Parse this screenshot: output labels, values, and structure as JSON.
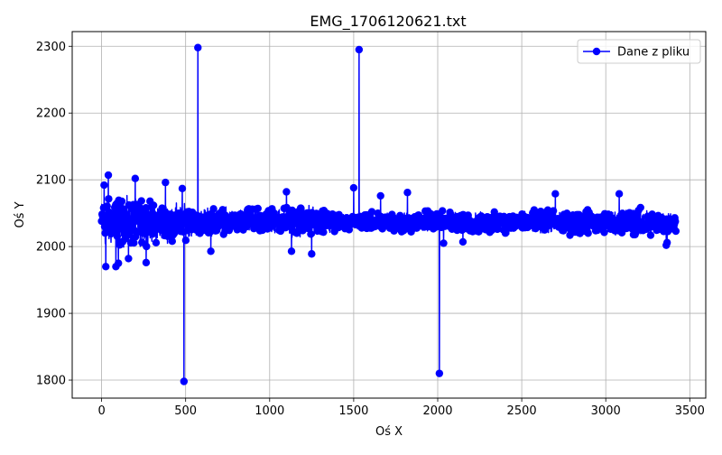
{
  "chart_data": {
    "type": "line",
    "title": "EMG_1706120621.txt",
    "xlabel": "Oś X",
    "ylabel": "Oś Y",
    "xlim": [
      -175,
      3595
    ],
    "ylim": [
      1773,
      2322
    ],
    "xticks": [
      0,
      500,
      1000,
      1500,
      2000,
      2500,
      3000,
      3500
    ],
    "yticks": [
      1800,
      1900,
      2000,
      2100,
      2200,
      2300
    ],
    "grid": true,
    "legend_position": "top-right",
    "series": [
      {
        "name": "Dane z pliku",
        "color": "#0000ff",
        "marker": "circle",
        "n_points": 3420,
        "baseline": 2035,
        "envelope": [
          [
            0,
            1985,
            2085
          ],
          [
            200,
            1990,
            2080
          ],
          [
            400,
            2000,
            2075
          ],
          [
            600,
            2010,
            2065
          ],
          [
            800,
            2012,
            2062
          ],
          [
            1000,
            2012,
            2065
          ],
          [
            1200,
            2008,
            2068
          ],
          [
            1400,
            2018,
            2055
          ],
          [
            1500,
            2025,
            2050
          ],
          [
            1600,
            2022,
            2055
          ],
          [
            1800,
            2015,
            2055
          ],
          [
            2000,
            2020,
            2058
          ],
          [
            2200,
            2015,
            2055
          ],
          [
            2400,
            2015,
            2055
          ],
          [
            2600,
            2015,
            2058
          ],
          [
            2800,
            2012,
            2060
          ],
          [
            3000,
            2015,
            2058
          ],
          [
            3200,
            2008,
            2065
          ],
          [
            3419,
            2015,
            2058
          ]
        ],
        "highlighted_points": [
          {
            "x": 573,
            "y": 2298
          },
          {
            "x": 1532,
            "y": 2295
          },
          {
            "x": 490,
            "y": 1798
          },
          {
            "x": 2010,
            "y": 1810
          },
          {
            "x": 160,
            "y": 2112
          },
          {
            "x": 40,
            "y": 2107
          },
          {
            "x": 15,
            "y": 2092
          },
          {
            "x": 200,
            "y": 2102
          },
          {
            "x": 380,
            "y": 2096
          },
          {
            "x": 480,
            "y": 2087
          },
          {
            "x": 1100,
            "y": 2082
          },
          {
            "x": 1500,
            "y": 2088
          },
          {
            "x": 1660,
            "y": 2076
          },
          {
            "x": 1820,
            "y": 2081
          },
          {
            "x": 2700,
            "y": 2079
          },
          {
            "x": 3080,
            "y": 2079
          },
          {
            "x": 25,
            "y": 1970
          },
          {
            "x": 85,
            "y": 1970
          },
          {
            "x": 100,
            "y": 1975
          },
          {
            "x": 265,
            "y": 1976
          },
          {
            "x": 160,
            "y": 1982
          },
          {
            "x": 650,
            "y": 1993
          },
          {
            "x": 1130,
            "y": 1993
          },
          {
            "x": 1250,
            "y": 1989
          },
          {
            "x": 3360,
            "y": 2002
          },
          {
            "x": 3365,
            "y": 2006
          },
          {
            "x": 2035,
            "y": 2005
          },
          {
            "x": 2150,
            "y": 2007
          }
        ]
      }
    ]
  }
}
